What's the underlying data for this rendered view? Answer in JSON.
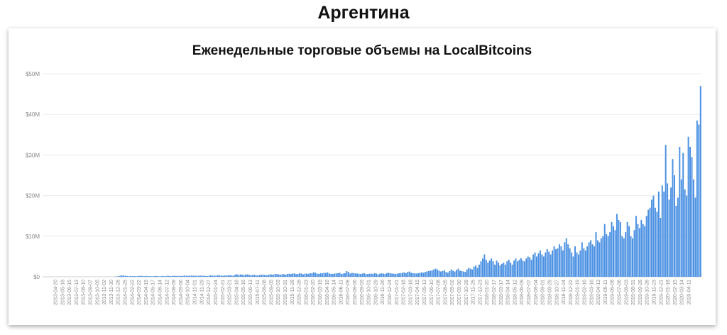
{
  "page": {
    "title": "Аргентина"
  },
  "chart_data": {
    "type": "bar",
    "title": "Еженедельные торговые объемы на LocalBitcoins",
    "xlabel": "",
    "ylabel": "",
    "ylim": [
      0,
      50000000
    ],
    "y_ticks": [
      "$0",
      "$10M",
      "$20M",
      "$30M",
      "$40M",
      "$50M"
    ],
    "grid": true,
    "color": "#4a90e2",
    "x_tick_labels": [
      "2013-04-20",
      "2013-05-18",
      "2013-06-15",
      "2013-07-13",
      "2013-08-10",
      "2013-09-07",
      "2013-10-05",
      "2013-11-02",
      "2013-11-30",
      "2013-12-28",
      "2014-01-25",
      "2014-02-22",
      "2014-03-22",
      "2014-04-19",
      "2014-05-17",
      "2014-06-14",
      "2014-07-12",
      "2014-08-09",
      "2014-09-06",
      "2014-10-04",
      "2014-11-01",
      "2014-11-29",
      "2014-12-27",
      "2015-01-24",
      "2015-02-21",
      "2015-03-21",
      "2015-04-18",
      "2015-05-16",
      "2015-06-13",
      "2015-07-11",
      "2015-08-08",
      "2015-09-05",
      "2015-10-03",
      "2015-10-31",
      "2015-11-28",
      "2015-12-26",
      "2016-01-23",
      "2016-02-20",
      "2016-03-19",
      "2016-04-16",
      "2016-05-14",
      "2016-06-11",
      "2016-07-09",
      "2016-08-06",
      "2016-09-03",
      "2016-10-01",
      "2016-10-29",
      "2016-11-26",
      "2016-12-24",
      "2017-01-21",
      "2017-02-18",
      "2017-03-18",
      "2017-04-15",
      "2017-05-13",
      "2017-06-10",
      "2017-07-08",
      "2017-08-05",
      "2017-09-02",
      "2017-09-30",
      "2017-10-28",
      "2017-11-25",
      "2017-12-23",
      "2018-01-20",
      "2018-02-17",
      "2018-03-17",
      "2018-04-14",
      "2018-05-12",
      "2018-06-09",
      "2018-07-07",
      "2018-08-04",
      "2018-09-01",
      "2018-09-29",
      "2018-10-27",
      "2018-11-24",
      "2018-12-22",
      "2019-01-19",
      "2019-02-16",
      "2019-03-16",
      "2019-04-13",
      "2019-05-11",
      "2019-06-08",
      "2019-07-06",
      "2019-08-03",
      "2019-08-31",
      "2019-09-28",
      "2019-10-26",
      "2019-11-23",
      "2019-12-21",
      "2020-01-18",
      "2020-02-15",
      "2020-03-14",
      "2020-04-11"
    ],
    "series": [
      {
        "values": [
          0,
          0,
          0,
          0,
          0,
          0,
          0,
          0,
          0,
          0,
          0,
          0,
          0,
          0,
          0,
          0,
          0,
          0,
          0,
          0,
          0,
          0,
          0,
          0,
          0,
          0,
          0,
          0,
          0,
          0,
          0,
          0,
          0,
          0,
          0,
          0,
          0,
          0,
          0,
          0,
          0,
          50000,
          80000,
          150000,
          250000,
          350000,
          300000,
          250000,
          200000,
          150000,
          200000,
          150000,
          180000,
          150000,
          150000,
          200000,
          250000,
          200000,
          150000,
          200000,
          180000,
          150000,
          120000,
          150000,
          200000,
          180000,
          150000,
          120000,
          200000,
          150000,
          180000,
          250000,
          200000,
          180000,
          220000,
          250000,
          220000,
          200000,
          250000,
          180000,
          250000,
          300000,
          250000,
          220000,
          300000,
          280000,
          250000,
          300000,
          220000,
          250000,
          280000,
          300000,
          250000,
          220000,
          200000,
          250000,
          350000,
          280000,
          300000,
          250000,
          400000,
          350000,
          300000,
          250000,
          350000,
          300000,
          400000,
          380000,
          350000,
          300000,
          500000,
          650000,
          400000,
          600000,
          500000,
          450000,
          550000,
          600000,
          500000,
          400000,
          450000,
          500000,
          400000,
          350000,
          450000,
          500000,
          550000,
          450000,
          400000,
          500000,
          600000,
          550000,
          500000,
          700000,
          650000,
          600000,
          500000,
          650000,
          600000,
          550000,
          700000,
          750000,
          700000,
          800000,
          850000,
          650000,
          700000,
          900000,
          800000,
          600000,
          750000,
          800000,
          700000,
          900000,
          850000,
          1100000,
          1000000,
          800000,
          700000,
          900000,
          850000,
          1000000,
          950000,
          1100000,
          800000,
          750000,
          700000,
          800000,
          850000,
          900000,
          1000000,
          700000,
          800000,
          900000,
          1400000,
          1200000,
          800000,
          1000000,
          900000,
          850000,
          800000,
          750000,
          700000,
          800000,
          900000,
          700000,
          650000,
          750000,
          800000,
          700000,
          900000,
          800000,
          600000,
          750000,
          850000,
          800000,
          700000,
          900000,
          1000000,
          900000,
          800000,
          750000,
          700000,
          800000,
          850000,
          900000,
          1000000,
          1100000,
          900000,
          1200000,
          1300000,
          1000000,
          900000,
          850000,
          800000,
          900000,
          1000000,
          1100000,
          1000000,
          1200000,
          1300000,
          1400000,
          1500000,
          1600000,
          1800000,
          2000000,
          1800000,
          1500000,
          1300000,
          1400000,
          1600000,
          1200000,
          1000000,
          1400000,
          1800000,
          1500000,
          1300000,
          1700000,
          2000000,
          1500000,
          1400000,
          1300000,
          1200000,
          1800000,
          2200000,
          2000000,
          1800000,
          2500000,
          2800000,
          2200000,
          3000000,
          3800000,
          4500000,
          5500000,
          4200000,
          3500000,
          4000000,
          4500000,
          3800000,
          3000000,
          4000000,
          3500000,
          2800000,
          3200000,
          3500000,
          3000000,
          3800000,
          4200000,
          3500000,
          3000000,
          4000000,
          4500000,
          3800000,
          4200000,
          4600000,
          4000000,
          3800000,
          4500000,
          5000000,
          4800000,
          4200000,
          5500000,
          6000000,
          5000000,
          5800000,
          6500000,
          5500000,
          5000000,
          6000000,
          6800000,
          6200000,
          5500000,
          6500000,
          7500000,
          6800000,
          7000000,
          8000000,
          7500000,
          6500000,
          8500000,
          9500000,
          8000000,
          7000000,
          6000000,
          5000000,
          7500000,
          6000000,
          5500000,
          6500000,
          8500000,
          7000000,
          6500000,
          7500000,
          8500000,
          9000000,
          8000000,
          7500000,
          11000000,
          9000000,
          8500000,
          9500000,
          10000000,
          13000000,
          10500000,
          10000000,
          11000000,
          13500000,
          12500000,
          11500000,
          15500000,
          14000000,
          13500000,
          10000000,
          9500000,
          11000000,
          13500000,
          12500000,
          10000000,
          9500000,
          11500000,
          15000000,
          13000000,
          12000000,
          14000000,
          13000000,
          12500000,
          15000000,
          16500000,
          17000000,
          19000000,
          20000000,
          17000000,
          16000000,
          21000000,
          14500000,
          22500000,
          21000000,
          32500000,
          23000000,
          19000000,
          22000000,
          29000000,
          25000000,
          17500000,
          19500000,
          32000000,
          24000000,
          30500000,
          21500000,
          20000000,
          34500000,
          32000000,
          29500000,
          24000000,
          19500000,
          38500000,
          37500000,
          47000000
        ]
      }
    ]
  }
}
